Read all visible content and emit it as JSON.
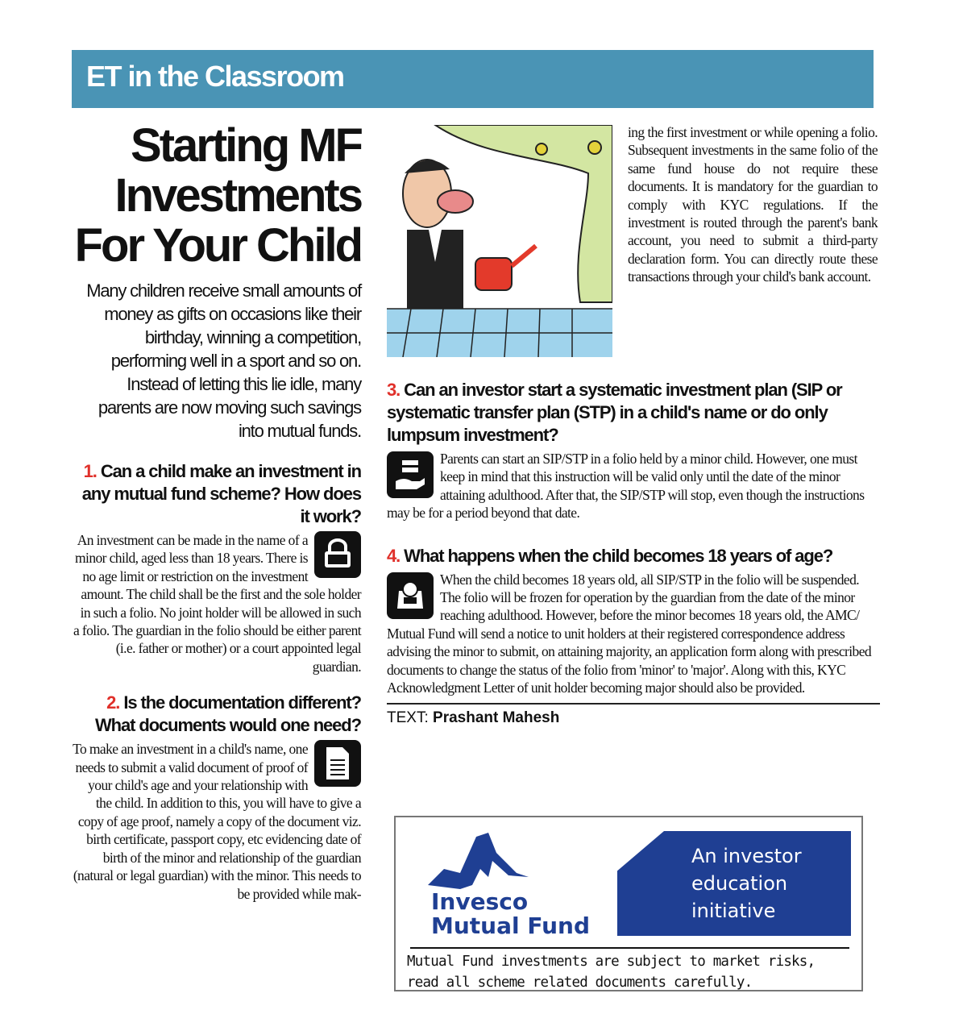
{
  "banner": {
    "title": "ET in the Classroom",
    "color": "#4a94b5"
  },
  "article": {
    "headline": "Starting MF Investments For Your Child",
    "intro": "Many children receive small amounts of money as gifts on occasions like their birthday, winning a competition, performing well in a sport and so on. Instead of letting this lie idle, many parents are now moving such savings into mutual funds.",
    "accent": "#e0302a",
    "questions": [
      {
        "num": "1.",
        "q": "Can a child make an investment in any mutual fund scheme? How does it work?",
        "icon": "lock-icon",
        "a": "An investment can be made in the name of a minor child, aged less than 18 years. There is no age limit or restriction on the investment amount. The child shall be the first and the sole holder in such a folio. No joint holder will be allowed in such a folio. The guardian in the folio should be either parent (i.e. father or mother) or a court appointed legal guardian."
      },
      {
        "num": "2.",
        "q": "Is the documentation different? What documents would one need?",
        "icon": "document-icon",
        "a": "To make an investment in a child's name, one needs to submit a valid document of proof of your child's age and your relationship with the child. In addition to this, you will have to give a copy of age proof, namely a copy of the document viz. birth certificate, passport copy, etc evidencing date of birth of the minor and relationship of the guardian (natural or legal guardian) with the minor. This needs to be provided while mak-",
        "a_cont": "ing the first investment or while opening a folio. Subsequent investments in the same folio of the same fund house do not require these documents. It is mandatory for the guardian to comply with KYC regulations. If the investment is routed through the parent's bank account, you need to submit a third-party declaration form. You can directly route these transactions through your child's bank account."
      },
      {
        "num": "3.",
        "q": "Can an investor start a systematic investment plan (SIP or systematic transfer plan (STP) in a child's name or do only lumpsum investment?",
        "icon": "money-hand-icon",
        "a": "Parents can start an SIP/STP in a folio held by a minor child. However, one must keep in mind that this instruction will be valid only until the date of the minor attaining adulthood. After that, the SIP/STP will stop, even though the instructions may be for a period beyond that date."
      },
      {
        "num": "4.",
        "q": "What happens when the child becomes 18 years of age?",
        "icon": "cash-register-icon",
        "a": "When the child becomes 18 years old, all SIP/STP in the folio will be suspended. The folio will be frozen for operation by the guardian from the date of the minor reaching adulthood. However, before the minor becomes 18 years old, the AMC/ Mutual Fund will send a notice to unit holders at their registered correspondence address advising the minor to submit, on attaining majority, an application form along with prescribed documents to change the status of the folio from 'minor' to 'major'. Along with this, KYC Acknowledgment Letter of unit holder becoming major should also be provided."
      }
    ],
    "byline_label": "TEXT:",
    "byline_name": "Prashant Mahesh"
  },
  "ad": {
    "brand_line1": "Invesco",
    "brand_line2": "Mutual Fund",
    "tagline1": "An investor",
    "tagline2": "education",
    "tagline3": "initiative",
    "disclaimer1": "Mutual Fund investments are subject to market risks,",
    "disclaimer2": "read all scheme related documents carefully.",
    "brand_color": "#1f3f93"
  }
}
